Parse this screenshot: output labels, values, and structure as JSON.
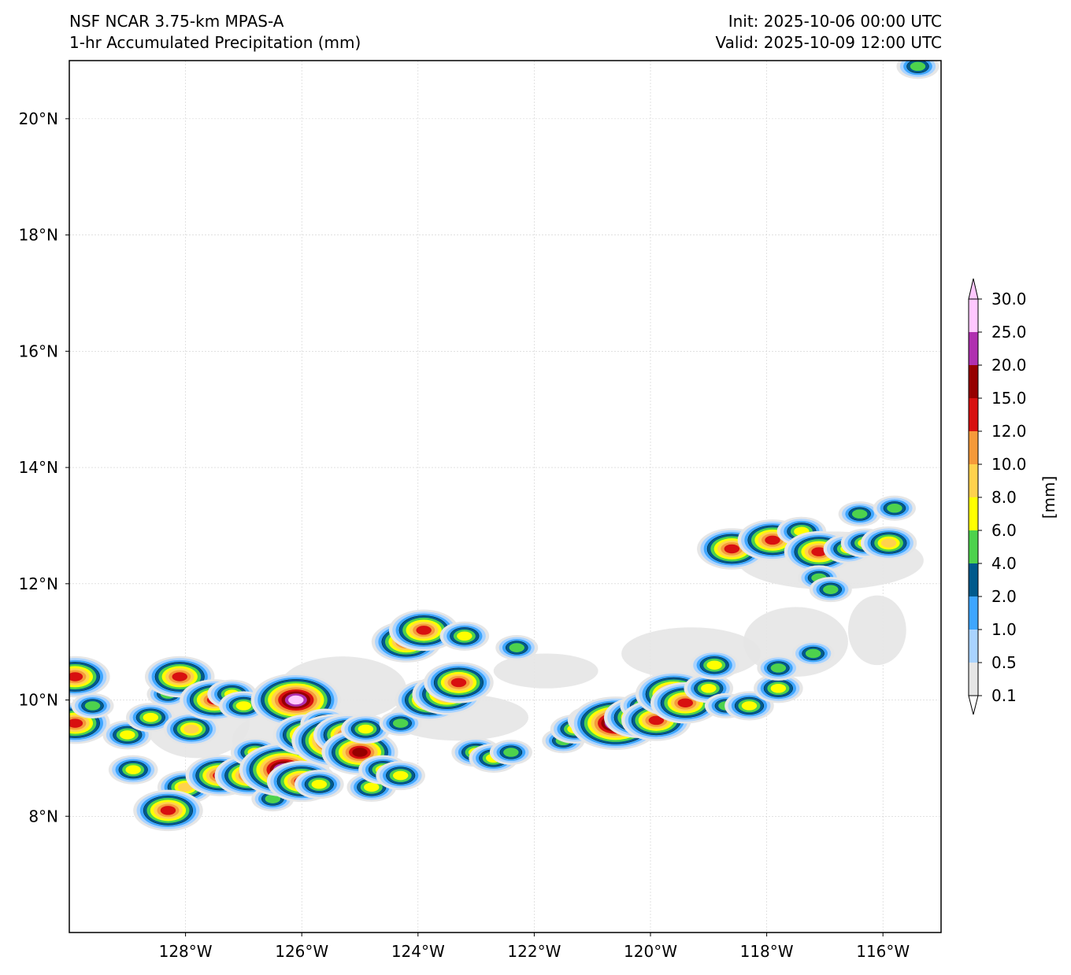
{
  "header": {
    "model": "NSF NCAR 3.75-km MPAS-A",
    "field": "1-hr Accumulated Precipitation (mm)",
    "init": "Init: 2025-10-06 00:00 UTC",
    "valid": "Valid: 2025-10-09 12:00 UTC"
  },
  "map": {
    "lon_range": [
      -130,
      -115
    ],
    "lat_range": [
      6,
      21
    ],
    "lat_ticks": [
      {
        "value": 20,
        "label": "20°N"
      },
      {
        "value": 18,
        "label": "18°N"
      },
      {
        "value": 16,
        "label": "16°N"
      },
      {
        "value": 14,
        "label": "14°N"
      },
      {
        "value": 12,
        "label": "12°N"
      },
      {
        "value": 10,
        "label": "10°N"
      },
      {
        "value": 8,
        "label": "8°N"
      }
    ],
    "lon_ticks": [
      {
        "value": -128,
        "label": "128°W"
      },
      {
        "value": -126,
        "label": "126°W"
      },
      {
        "value": -124,
        "label": "124°W"
      },
      {
        "value": -122,
        "label": "122°W"
      },
      {
        "value": -120,
        "label": "120°W"
      },
      {
        "value": -118,
        "label": "118°W"
      },
      {
        "value": -116,
        "label": "116°W"
      }
    ],
    "gridlines": true
  },
  "colorbar": {
    "unit_label": "[mm]",
    "levels": [
      "0.1",
      "0.5",
      "1.0",
      "2.0",
      "4.0",
      "6.0",
      "8.0",
      "10.0",
      "12.0",
      "15.0",
      "20.0",
      "25.0",
      "30.0"
    ],
    "colors": [
      "#e6e6e6",
      "#a9d3ff",
      "#3ea6ff",
      "#005a8c",
      "#4dd24d",
      "#ffff00",
      "#ffd24d",
      "#f59a3a",
      "#d81010",
      "#960000",
      "#b030b0",
      "#ffc8ff"
    ],
    "extend": "both"
  },
  "precip_cells": [
    {
      "lon": -129.9,
      "lat": 9.6,
      "level": 8
    },
    {
      "lon": -129.9,
      "lat": 10.4,
      "level": 8
    },
    {
      "lon": -129.6,
      "lat": 9.9,
      "level": 4
    },
    {
      "lon": -129.0,
      "lat": 9.4,
      "level": 5
    },
    {
      "lon": -128.9,
      "lat": 8.8,
      "level": 5
    },
    {
      "lon": -128.6,
      "lat": 9.7,
      "level": 5
    },
    {
      "lon": -128.3,
      "lat": 10.1,
      "level": 4
    },
    {
      "lon": -128.1,
      "lat": 10.4,
      "level": 8
    },
    {
      "lon": -127.9,
      "lat": 9.5,
      "level": 6
    },
    {
      "lon": -128.0,
      "lat": 8.5,
      "level": 6
    },
    {
      "lon": -128.3,
      "lat": 8.1,
      "level": 8
    },
    {
      "lon": -127.5,
      "lat": 10.0,
      "level": 8
    },
    {
      "lon": -127.2,
      "lat": 10.1,
      "level": 5
    },
    {
      "lon": -127.4,
      "lat": 8.7,
      "level": 8
    },
    {
      "lon": -127.0,
      "lat": 9.9,
      "level": 5
    },
    {
      "lon": -126.9,
      "lat": 8.7,
      "level": 8
    },
    {
      "lon": -126.8,
      "lat": 9.1,
      "level": 5
    },
    {
      "lon": -126.5,
      "lat": 8.3,
      "level": 4
    },
    {
      "lon": -126.4,
      "lat": 9.9,
      "level": 5
    },
    {
      "lon": -126.3,
      "lat": 8.8,
      "level": 11
    },
    {
      "lon": -126.1,
      "lat": 10.0,
      "level": 11
    },
    {
      "lon": -126.0,
      "lat": 8.6,
      "level": 8
    },
    {
      "lon": -125.9,
      "lat": 9.4,
      "level": 8
    },
    {
      "lon": -125.7,
      "lat": 8.55,
      "level": 5
    },
    {
      "lon": -125.6,
      "lat": 9.6,
      "level": 5
    },
    {
      "lon": -125.4,
      "lat": 9.3,
      "level": 11
    },
    {
      "lon": -125.2,
      "lat": 9.4,
      "level": 8
    },
    {
      "lon": -125.0,
      "lat": 9.1,
      "level": 9
    },
    {
      "lon": -124.9,
      "lat": 9.5,
      "level": 5
    },
    {
      "lon": -124.8,
      "lat": 8.5,
      "level": 5
    },
    {
      "lon": -124.6,
      "lat": 8.8,
      "level": 5
    },
    {
      "lon": -124.3,
      "lat": 8.7,
      "level": 5
    },
    {
      "lon": -124.3,
      "lat": 9.6,
      "level": 4
    },
    {
      "lon": -124.2,
      "lat": 11.0,
      "level": 8
    },
    {
      "lon": -123.9,
      "lat": 11.2,
      "level": 8
    },
    {
      "lon": -123.8,
      "lat": 10.0,
      "level": 8
    },
    {
      "lon": -123.5,
      "lat": 10.1,
      "level": 8
    },
    {
      "lon": -123.3,
      "lat": 10.3,
      "level": 8
    },
    {
      "lon": -123.0,
      "lat": 9.1,
      "level": 5
    },
    {
      "lon": -123.2,
      "lat": 11.1,
      "level": 5
    },
    {
      "lon": -122.7,
      "lat": 9.0,
      "level": 5
    },
    {
      "lon": -122.3,
      "lat": 10.9,
      "level": 4
    },
    {
      "lon": -122.4,
      "lat": 9.1,
      "level": 4
    },
    {
      "lon": -121.5,
      "lat": 9.3,
      "level": 4
    },
    {
      "lon": -121.3,
      "lat": 9.5,
      "level": 5
    },
    {
      "lon": -121.0,
      "lat": 9.65,
      "level": 5
    },
    {
      "lon": -120.6,
      "lat": 9.6,
      "level": 11
    },
    {
      "lon": -120.2,
      "lat": 9.7,
      "level": 8
    },
    {
      "lon": -120.1,
      "lat": 9.9,
      "level": 5
    },
    {
      "lon": -119.9,
      "lat": 9.65,
      "level": 8
    },
    {
      "lon": -119.6,
      "lat": 10.1,
      "level": 9
    },
    {
      "lon": -119.4,
      "lat": 9.95,
      "level": 8
    },
    {
      "lon": -119.0,
      "lat": 10.2,
      "level": 5
    },
    {
      "lon": -118.9,
      "lat": 10.6,
      "level": 5
    },
    {
      "lon": -118.7,
      "lat": 9.9,
      "level": 4
    },
    {
      "lon": -118.3,
      "lat": 9.9,
      "level": 5
    },
    {
      "lon": -117.8,
      "lat": 10.2,
      "level": 5
    },
    {
      "lon": -117.8,
      "lat": 10.55,
      "level": 4
    },
    {
      "lon": -117.2,
      "lat": 10.8,
      "level": 4
    },
    {
      "lon": -118.6,
      "lat": 12.6,
      "level": 8
    },
    {
      "lon": -117.9,
      "lat": 12.75,
      "level": 8
    },
    {
      "lon": -117.4,
      "lat": 12.9,
      "level": 5
    },
    {
      "lon": -117.1,
      "lat": 12.55,
      "level": 8
    },
    {
      "lon": -116.6,
      "lat": 12.6,
      "level": 5
    },
    {
      "lon": -116.3,
      "lat": 12.7,
      "level": 5
    },
    {
      "lon": -115.9,
      "lat": 12.7,
      "level": 6
    },
    {
      "lon": -116.4,
      "lat": 13.2,
      "level": 4
    },
    {
      "lon": -115.8,
      "lat": 13.3,
      "level": 4
    },
    {
      "lon": -117.1,
      "lat": 12.1,
      "level": 4
    },
    {
      "lon": -116.9,
      "lat": 11.9,
      "level": 4
    },
    {
      "lon": -115.4,
      "lat": 20.9,
      "level": 4
    }
  ],
  "light_areas": [
    {
      "lon": -125.3,
      "lat": 10.2,
      "rx": 1.1,
      "ry": 0.55
    },
    {
      "lon": -123.3,
      "lat": 9.7,
      "rx": 1.2,
      "ry": 0.4
    },
    {
      "lon": -121.8,
      "lat": 10.5,
      "rx": 0.9,
      "ry": 0.3
    },
    {
      "lon": -119.3,
      "lat": 10.8,
      "rx": 1.2,
      "ry": 0.45
    },
    {
      "lon": -117.5,
      "lat": 11.0,
      "rx": 0.9,
      "ry": 0.6
    },
    {
      "lon": -116.1,
      "lat": 11.2,
      "rx": 0.5,
      "ry": 0.6
    },
    {
      "lon": -116.9,
      "lat": 12.4,
      "rx": 1.6,
      "ry": 0.5
    },
    {
      "lon": -127.8,
      "lat": 9.6,
      "rx": 0.9,
      "ry": 0.6
    },
    {
      "lon": -126.3,
      "lat": 9.3,
      "rx": 0.9,
      "ry": 0.5
    }
  ]
}
